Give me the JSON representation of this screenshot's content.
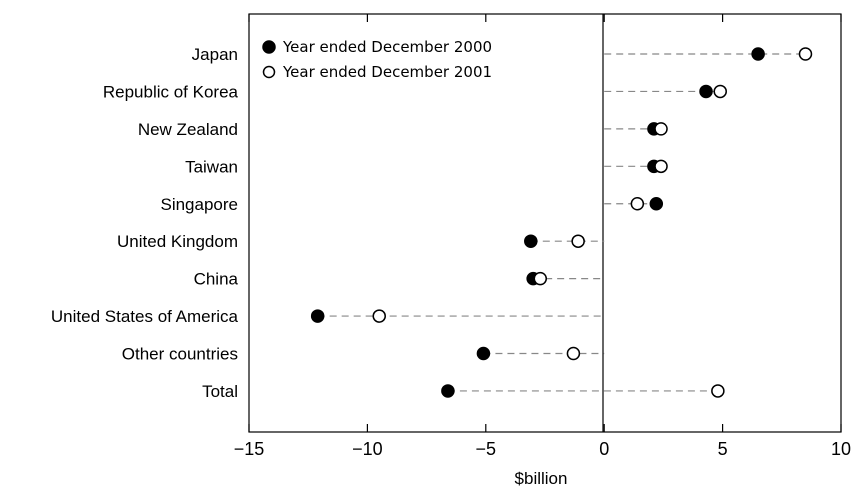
{
  "chart_data": {
    "type": "scatter",
    "subtype": "dot-plot",
    "title": "",
    "xlabel": "$billion",
    "ylabel": "",
    "xlim": [
      -15,
      10
    ],
    "xticks": [
      -15,
      -10,
      -5,
      0,
      5,
      10
    ],
    "xtick_labels": [
      "−15",
      "−10",
      "−5",
      "0",
      "5",
      "10"
    ],
    "grid": false,
    "legend_position": "top-left",
    "categories": [
      "Japan",
      "Republic of Korea",
      "New Zealand",
      "Taiwan",
      "Singapore",
      "United Kingdom",
      "China",
      "United States of America",
      "Other countries",
      "Total"
    ],
    "series": [
      {
        "name": "Year ended December 2000",
        "marker": "filled-circle",
        "values": [
          6.5,
          4.3,
          2.1,
          2.1,
          2.2,
          -3.1,
          -3.0,
          -12.1,
          -5.1,
          -6.6
        ]
      },
      {
        "name": "Year ended December 2001",
        "marker": "open-circle",
        "values": [
          8.5,
          4.9,
          2.4,
          2.4,
          1.4,
          -1.1,
          -2.7,
          -9.5,
          -1.3,
          4.8
        ]
      }
    ],
    "colors": {
      "marker": "#000000",
      "connector": "#888888"
    }
  }
}
